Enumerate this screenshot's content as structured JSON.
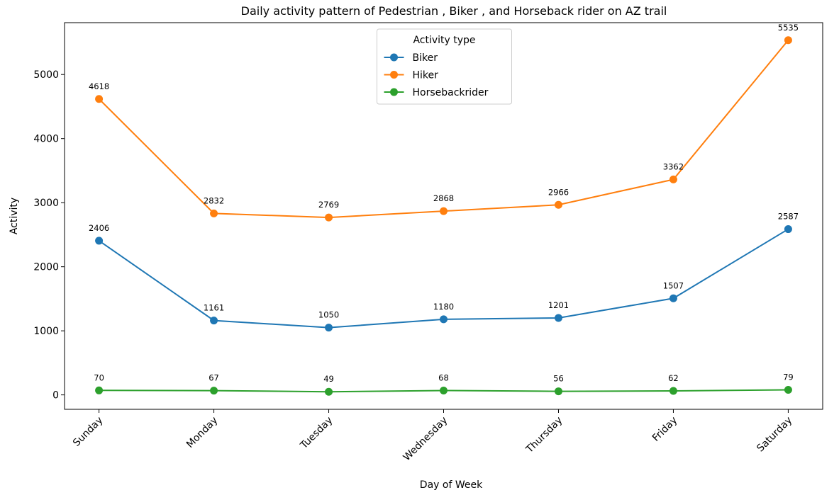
{
  "chart_data": {
    "type": "line",
    "title": "Daily activity pattern of Pedestrian , Biker , and Horseback rider on AZ trail",
    "xlabel": "Day of Week",
    "ylabel": "Activity",
    "categories": [
      "Sunday",
      "Monday",
      "Tuesday",
      "Wednesday",
      "Thursday",
      "Friday",
      "Saturday"
    ],
    "series": [
      {
        "name": "Biker",
        "color": "#1f77b4",
        "values": [
          2406,
          1161,
          1050,
          1180,
          1201,
          1507,
          2587
        ]
      },
      {
        "name": "Hiker",
        "color": "#ff7f0e",
        "values": [
          4618,
          2832,
          2769,
          2868,
          2966,
          3362,
          5535
        ]
      },
      {
        "name": "Horsebackrider",
        "color": "#2ca02c",
        "values": [
          70,
          67,
          49,
          68,
          56,
          62,
          79
        ]
      }
    ],
    "ylim": [
      -225,
      5809
    ],
    "yticks": [
      0,
      1000,
      2000,
      3000,
      4000,
      5000
    ],
    "legend_title": "Activity type",
    "legend": "upper center",
    "grid": false
  }
}
